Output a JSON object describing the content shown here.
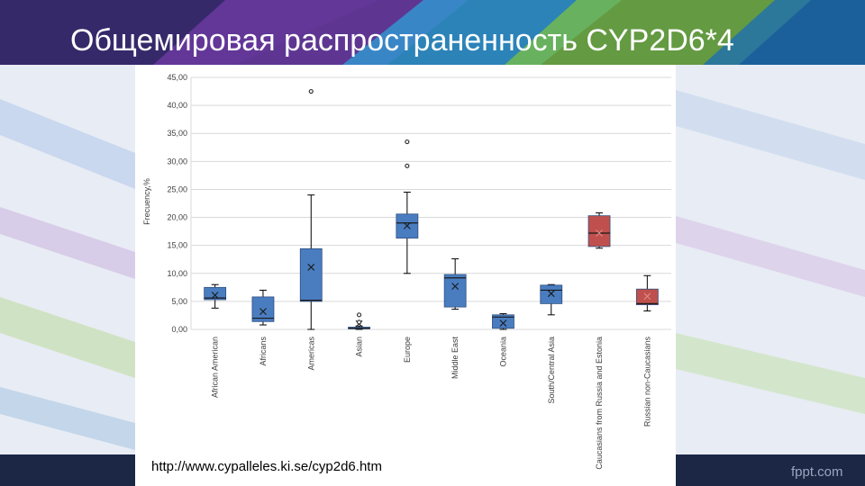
{
  "slide": {
    "title": "Общемировая распространенность CYP2D6*4",
    "source_url": "http://www.cypalleles.ki.se/cyp2d6.htm",
    "brand": "fppt.com"
  },
  "colors": {
    "blue": "#4a7dc0",
    "red": "#c0504d",
    "grid": "#d9d9d9"
  },
  "chart_data": {
    "type": "box",
    "ylabel": "Frecuency,%",
    "ylim": [
      0,
      45
    ],
    "yticks": [
      "0,00",
      "5,00",
      "10,00",
      "15,00",
      "20,00",
      "25,00",
      "30,00",
      "35,00",
      "40,00",
      "45,00"
    ],
    "grid": true,
    "series": [
      {
        "category": "African American",
        "min": 3.8,
        "q1": 5.3,
        "median": 5.6,
        "q3": 7.5,
        "max": 8.0,
        "mean": 6.1,
        "outliers": [],
        "color": "blue"
      },
      {
        "category": "Africans",
        "min": 0.8,
        "q1": 1.4,
        "median": 2.0,
        "q3": 5.8,
        "max": 7.0,
        "mean": 3.2,
        "outliers": [],
        "color": "blue"
      },
      {
        "category": "Americas",
        "min": 0.0,
        "q1": 5.0,
        "median": 5.2,
        "q3": 14.4,
        "max": 24.0,
        "mean": 11.1,
        "outliers": [
          42.5
        ],
        "color": "blue"
      },
      {
        "category": "Asian",
        "min": 0.0,
        "q1": 0.1,
        "median": 0.2,
        "q3": 0.4,
        "max": 0.6,
        "mean": 1.0,
        "outliers": [
          1.3,
          2.6
        ],
        "color": "blue"
      },
      {
        "category": "Europe",
        "min": 10.0,
        "q1": 16.3,
        "median": 19.0,
        "q3": 20.6,
        "max": 24.5,
        "mean": 18.5,
        "outliers": [
          29.2,
          33.5
        ],
        "color": "blue"
      },
      {
        "category": "Middle East",
        "min": 3.6,
        "q1": 4.0,
        "median": 9.2,
        "q3": 9.8,
        "max": 12.6,
        "mean": 7.7,
        "outliers": [],
        "color": "blue"
      },
      {
        "category": "Oceania",
        "min": 0.0,
        "q1": 0.2,
        "median": 2.2,
        "q3": 2.6,
        "max": 2.8,
        "mean": 1.1,
        "outliers": [],
        "color": "blue"
      },
      {
        "category": "South/Central Asia",
        "min": 2.6,
        "q1": 4.6,
        "median": 7.0,
        "q3": 7.9,
        "max": 8.0,
        "mean": 6.4,
        "outliers": [],
        "color": "blue"
      },
      {
        "category": "Caucasians from Russia and Estonia",
        "min": 14.5,
        "q1": 14.8,
        "median": 17.2,
        "q3": 20.3,
        "max": 20.8,
        "mean": 17.2,
        "outliers": [],
        "color": "red"
      },
      {
        "category": "Russian non-Caucasians",
        "min": 3.3,
        "q1": 4.4,
        "median": 4.6,
        "q3": 7.2,
        "max": 9.6,
        "mean": 5.9,
        "outliers": [],
        "color": "red"
      }
    ]
  }
}
